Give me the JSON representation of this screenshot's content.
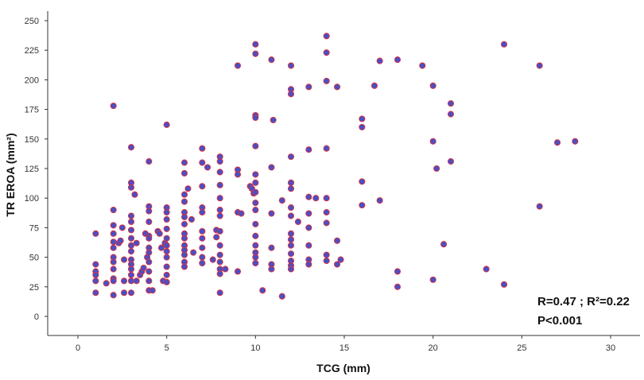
{
  "chart_data": {
    "type": "scatter",
    "xlabel": "TCG (mm)",
    "ylabel": "TR EROA (mm²)",
    "xlim": [
      -2,
      32
    ],
    "ylim": [
      -15,
      255
    ],
    "xticks": [
      0,
      5,
      10,
      15,
      20,
      25,
      30
    ],
    "yticks": [
      0,
      25,
      50,
      75,
      100,
      125,
      150,
      175,
      200,
      225,
      250
    ],
    "grid": false,
    "legend": "none",
    "point_fill": "#4a4fc4",
    "point_stroke": "#e0303a",
    "annotations": [
      "R=0.47 ; R²=0.22",
      "P<0.001"
    ],
    "points": [
      [
        1,
        70
      ],
      [
        1,
        44
      ],
      [
        1,
        38
      ],
      [
        1,
        35
      ],
      [
        1,
        30
      ],
      [
        1,
        20
      ],
      [
        1.6,
        28
      ],
      [
        2,
        178
      ],
      [
        2,
        90
      ],
      [
        2,
        77
      ],
      [
        2,
        70
      ],
      [
        2,
        63
      ],
      [
        2,
        58
      ],
      [
        2,
        50
      ],
      [
        2,
        46
      ],
      [
        2,
        40
      ],
      [
        2,
        32
      ],
      [
        2,
        30
      ],
      [
        2,
        18
      ],
      [
        2.3,
        62
      ],
      [
        2.4,
        64
      ],
      [
        2.5,
        75
      ],
      [
        2.6,
        48
      ],
      [
        2.6,
        30
      ],
      [
        2.6,
        20
      ],
      [
        3,
        143
      ],
      [
        3,
        113
      ],
      [
        3,
        109
      ],
      [
        3,
        85
      ],
      [
        3,
        80
      ],
      [
        3,
        73
      ],
      [
        3,
        66
      ],
      [
        3,
        60
      ],
      [
        3,
        55
      ],
      [
        3,
        48
      ],
      [
        3,
        44
      ],
      [
        3,
        40
      ],
      [
        3,
        35
      ],
      [
        3,
        30
      ],
      [
        3,
        20
      ],
      [
        3.2,
        103
      ],
      [
        3.3,
        62
      ],
      [
        3.3,
        30
      ],
      [
        3.5,
        35
      ],
      [
        3.6,
        38
      ],
      [
        3.7,
        41
      ],
      [
        3.8,
        70
      ],
      [
        3.9,
        50
      ],
      [
        4,
        131
      ],
      [
        4,
        93
      ],
      [
        4,
        89
      ],
      [
        4,
        80
      ],
      [
        4,
        68
      ],
      [
        4,
        66
      ],
      [
        4,
        58
      ],
      [
        4,
        54
      ],
      [
        4,
        46
      ],
      [
        4,
        38
      ],
      [
        4,
        30
      ],
      [
        4,
        22
      ],
      [
        4.2,
        22
      ],
      [
        4.5,
        72
      ],
      [
        4.6,
        70
      ],
      [
        4.7,
        58
      ],
      [
        4.8,
        30
      ],
      [
        4.9,
        62
      ],
      [
        5,
        162
      ],
      [
        5,
        92
      ],
      [
        5,
        88
      ],
      [
        5,
        82
      ],
      [
        5,
        74
      ],
      [
        5,
        66
      ],
      [
        5,
        60
      ],
      [
        5,
        55
      ],
      [
        5,
        50
      ],
      [
        5,
        42
      ],
      [
        5,
        35
      ],
      [
        5,
        29
      ],
      [
        6,
        130
      ],
      [
        6,
        121
      ],
      [
        6,
        103
      ],
      [
        6,
        97
      ],
      [
        6,
        88
      ],
      [
        6,
        84
      ],
      [
        6,
        78
      ],
      [
        6,
        70
      ],
      [
        6,
        66
      ],
      [
        6,
        60
      ],
      [
        6,
        56
      ],
      [
        6,
        52
      ],
      [
        6,
        46
      ],
      [
        6,
        42
      ],
      [
        6.2,
        108
      ],
      [
        6.4,
        82
      ],
      [
        6.5,
        54
      ],
      [
        7,
        142
      ],
      [
        7,
        130
      ],
      [
        7,
        110
      ],
      [
        7,
        92
      ],
      [
        7,
        88
      ],
      [
        7,
        72
      ],
      [
        7,
        66
      ],
      [
        7,
        58
      ],
      [
        7,
        50
      ],
      [
        7,
        45
      ],
      [
        7.3,
        126
      ],
      [
        7.6,
        48
      ],
      [
        7.8,
        73
      ],
      [
        7.8,
        67
      ],
      [
        8,
        135
      ],
      [
        8,
        131
      ],
      [
        8,
        122
      ],
      [
        8,
        111
      ],
      [
        8,
        100
      ],
      [
        8,
        90
      ],
      [
        8,
        85
      ],
      [
        8,
        72
      ],
      [
        8,
        60
      ],
      [
        8,
        52
      ],
      [
        8,
        46
      ],
      [
        8,
        40
      ],
      [
        8,
        36
      ],
      [
        8,
        20
      ],
      [
        8.3,
        40
      ],
      [
        9,
        212
      ],
      [
        9,
        124
      ],
      [
        9,
        120
      ],
      [
        9,
        88
      ],
      [
        9,
        38
      ],
      [
        9.2,
        87
      ],
      [
        9.7,
        110
      ],
      [
        9.8,
        108
      ],
      [
        9.9,
        104
      ],
      [
        10,
        230
      ],
      [
        10,
        222
      ],
      [
        10,
        170
      ],
      [
        10,
        168
      ],
      [
        10,
        144
      ],
      [
        10,
        120
      ],
      [
        10,
        113
      ],
      [
        10,
        105
      ],
      [
        10,
        96
      ],
      [
        10,
        90
      ],
      [
        10,
        78
      ],
      [
        10,
        68
      ],
      [
        10,
        60
      ],
      [
        10,
        54
      ],
      [
        10,
        50
      ],
      [
        10,
        45
      ],
      [
        10.4,
        22
      ],
      [
        10.9,
        217
      ],
      [
        10.9,
        126
      ],
      [
        10.9,
        87
      ],
      [
        10.9,
        58
      ],
      [
        10.9,
        44
      ],
      [
        10.9,
        40
      ],
      [
        11,
        166
      ],
      [
        11.5,
        98
      ],
      [
        11.5,
        17
      ],
      [
        12,
        212
      ],
      [
        12,
        192
      ],
      [
        12,
        188
      ],
      [
        12,
        135
      ],
      [
        12,
        113
      ],
      [
        12,
        108
      ],
      [
        12,
        92
      ],
      [
        12,
        85
      ],
      [
        12,
        70
      ],
      [
        12,
        65
      ],
      [
        12,
        60
      ],
      [
        12,
        53
      ],
      [
        12,
        47
      ],
      [
        12,
        43
      ],
      [
        12,
        40
      ],
      [
        12.4,
        80
      ],
      [
        13,
        194
      ],
      [
        13,
        141
      ],
      [
        13,
        101
      ],
      [
        13,
        87
      ],
      [
        13,
        75
      ],
      [
        13,
        60
      ],
      [
        13,
        48
      ],
      [
        13,
        44
      ],
      [
        13.4,
        100
      ],
      [
        14,
        237
      ],
      [
        14,
        223
      ],
      [
        14,
        199
      ],
      [
        14,
        142
      ],
      [
        14,
        100
      ],
      [
        14,
        88
      ],
      [
        14,
        79
      ],
      [
        14,
        52
      ],
      [
        14,
        47
      ],
      [
        14.6,
        194
      ],
      [
        14.6,
        64
      ],
      [
        14.6,
        44
      ],
      [
        14.8,
        48
      ],
      [
        16,
        167
      ],
      [
        16,
        160
      ],
      [
        16,
        114
      ],
      [
        16,
        94
      ],
      [
        16.7,
        195
      ],
      [
        17,
        216
      ],
      [
        17,
        98
      ],
      [
        18,
        217
      ],
      [
        18,
        38
      ],
      [
        18,
        25
      ],
      [
        19.4,
        212
      ],
      [
        20,
        195
      ],
      [
        20,
        148
      ],
      [
        20,
        31
      ],
      [
        20.2,
        125
      ],
      [
        20.6,
        61
      ],
      [
        21,
        180
      ],
      [
        21,
        171
      ],
      [
        21,
        131
      ],
      [
        23,
        40
      ],
      [
        24,
        230
      ],
      [
        24,
        27
      ],
      [
        26,
        212
      ],
      [
        26,
        93
      ],
      [
        27,
        147
      ],
      [
        28,
        148
      ]
    ]
  }
}
